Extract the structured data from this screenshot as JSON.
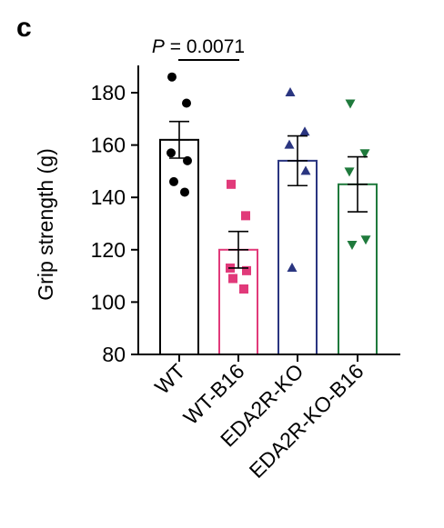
{
  "panel_letter": "c",
  "chart_data": {
    "type": "bar",
    "title": "",
    "ylabel": "Grip strength (g)",
    "xlabel": "",
    "ylim": [
      80,
      190
    ],
    "yticks": [
      80,
      100,
      120,
      140,
      160,
      180
    ],
    "categories": [
      "WT",
      "WT-B16",
      "EDA2R-KO",
      "EDA2R-KO-B16"
    ],
    "means": [
      162,
      120,
      154,
      145
    ],
    "sem": [
      7,
      7,
      9.5,
      10.5
    ],
    "colors": [
      "#000000",
      "#e13a7a",
      "#2a3580",
      "#1f7a3c"
    ],
    "markers": [
      "circle",
      "square",
      "triangle-up",
      "triangle-down"
    ],
    "points": [
      [
        186,
        176,
        157,
        154,
        146,
        142
      ],
      [
        145,
        133,
        113,
        112,
        109,
        105
      ],
      [
        180,
        165,
        160,
        150,
        113
      ],
      [
        176,
        157,
        150,
        124,
        122
      ]
    ],
    "annotation": {
      "label_italic": "P",
      "label_rest": " = 0.0071",
      "from": "WT",
      "to": "WT-B16"
    }
  }
}
